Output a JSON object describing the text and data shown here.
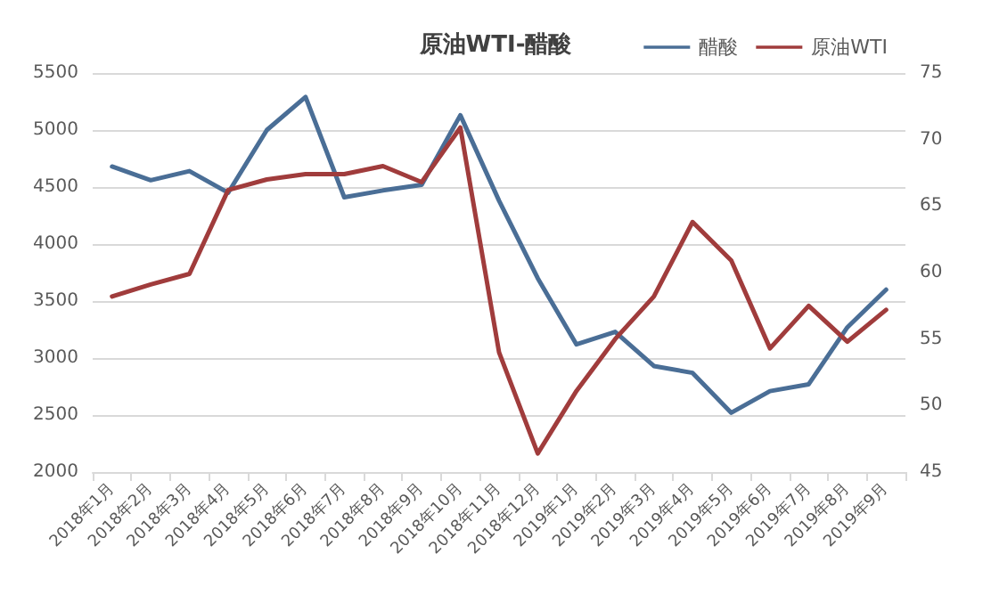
{
  "chart_data": {
    "type": "line",
    "title": "原油WTI-醋酸",
    "categories": [
      "2018年1月",
      "2018年2月",
      "2018年3月",
      "2018年4月",
      "2018年5月",
      "2018年6月",
      "2018年7月",
      "2018年8月",
      "2018年9月",
      "2018年10月",
      "2018年11月",
      "2018年12月",
      "2019年1月",
      "2019年2月",
      "2019年3月",
      "2019年4月",
      "2019年5月",
      "2019年6月",
      "2019年7月",
      "2019年8月",
      "2019年9月"
    ],
    "series": [
      {
        "name": "醋酸",
        "color": "#4a6e96",
        "values": [
          4680,
          4560,
          4640,
          4450,
          5000,
          5290,
          4410,
          4470,
          4520,
          5130,
          4380,
          3700,
          3120,
          3230,
          2930,
          2870,
          2520,
          2710,
          2770,
          3270,
          3600
        ]
      },
      {
        "name": "原油WTI",
        "color": "#a03c3c",
        "axis": "y2",
        "values": [
          58.2,
          59.1,
          59.9,
          66.2,
          67.0,
          67.4,
          67.4,
          68.0,
          66.8,
          70.9,
          54.0,
          46.4,
          51.1,
          55.0,
          58.2,
          63.8,
          60.9,
          54.3,
          57.5,
          54.8,
          57.2
        ]
      }
    ],
    "ylim": [
      2000,
      5500
    ],
    "yticks": [
      2000,
      2500,
      3000,
      3500,
      4000,
      4500,
      5000,
      5500
    ],
    "y2lim": [
      45,
      75
    ],
    "y2ticks": [
      45,
      50,
      55,
      60,
      65,
      70,
      75
    ],
    "grid": "y",
    "legend": "top right",
    "marker": "none",
    "line_style": "solid"
  }
}
